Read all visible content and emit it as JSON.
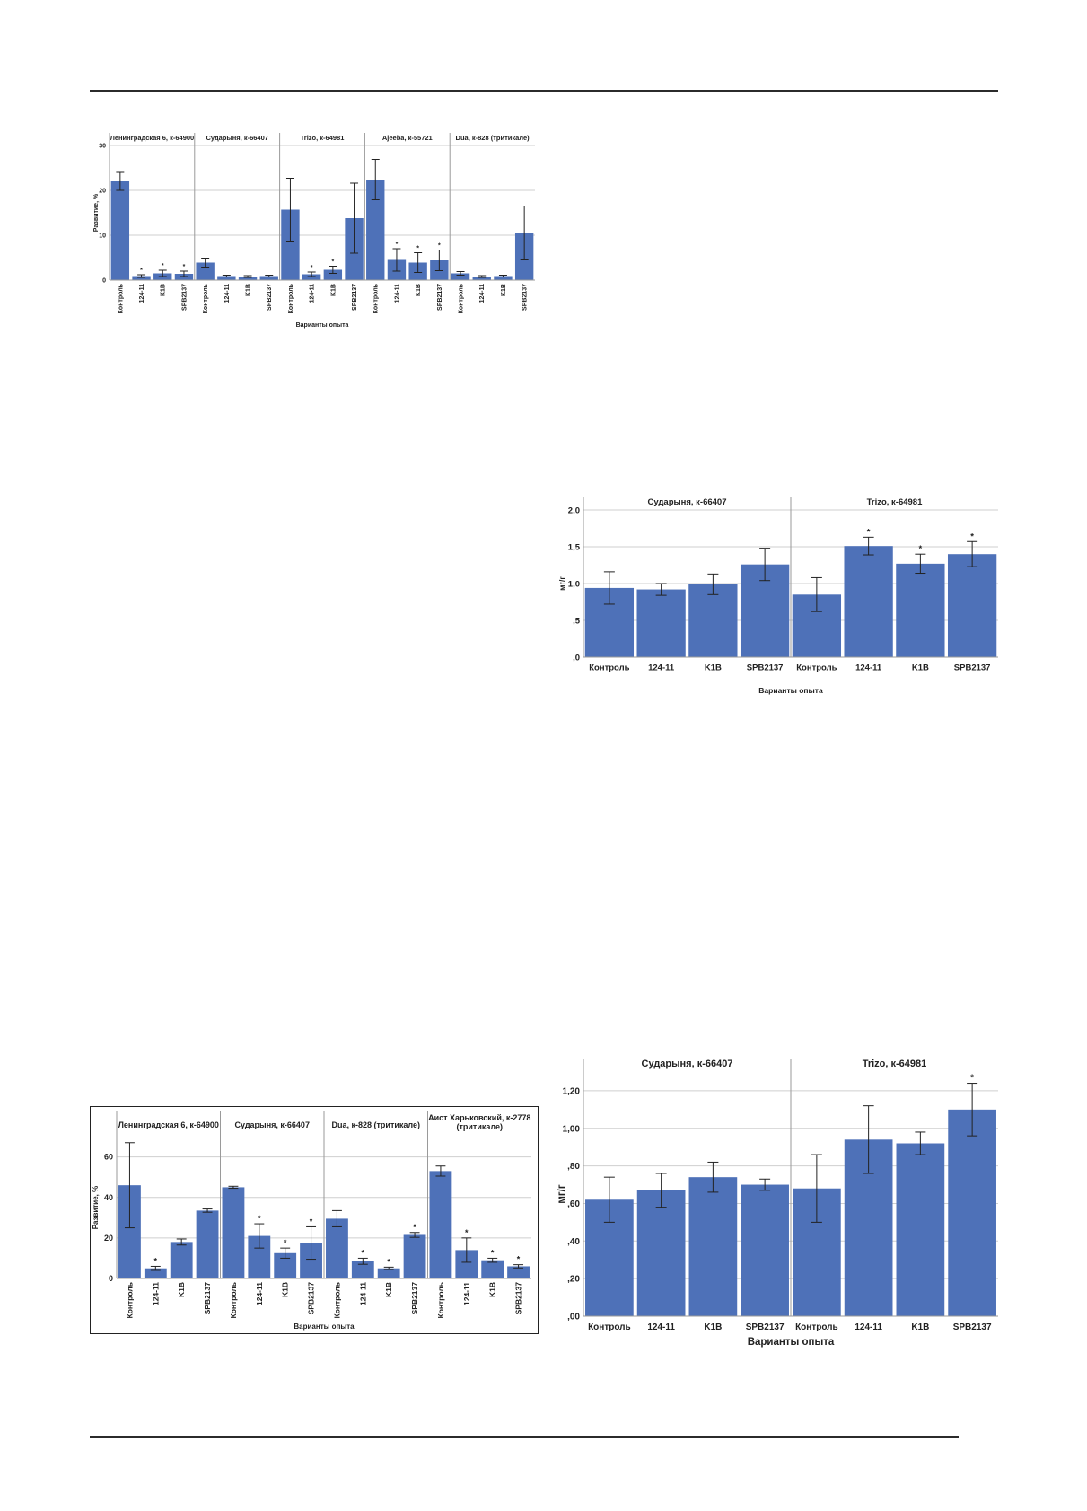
{
  "chart_data": [
    {
      "id": "chart-1",
      "type": "bar",
      "panels": [
        {
          "title": "Ленинградская 6, к-64900",
          "categories": [
            "Контроль",
            "124-11",
            "K1B",
            "SPB2137"
          ],
          "values": [
            22.0,
            0.9,
            1.5,
            1.4
          ],
          "err": [
            2.0,
            0.3,
            0.7,
            0.6
          ],
          "stars": [
            "",
            "*",
            "*",
            "*"
          ]
        },
        {
          "title": "Сударыня, к-66407",
          "categories": [
            "Контроль",
            "124-11",
            "K1B",
            "SPB2137"
          ],
          "values": [
            3.9,
            0.9,
            0.8,
            0.9
          ],
          "err": [
            1.0,
            0.2,
            0.2,
            0.2
          ],
          "stars": [
            "",
            "",
            "",
            ""
          ]
        },
        {
          "title": "Trizo, к-64981",
          "categories": [
            "Контроль",
            "124-11",
            "K1B",
            "SPB2137"
          ],
          "values": [
            15.7,
            1.3,
            2.3,
            13.8
          ],
          "err": [
            7.0,
            0.5,
            0.8,
            7.8
          ],
          "stars": [
            "",
            "*",
            "*",
            ""
          ]
        },
        {
          "title": "Ajeeba, к-55721",
          "categories": [
            "Контроль",
            "124-11",
            "K1B",
            "SPB2137"
          ],
          "values": [
            22.4,
            4.5,
            3.9,
            4.4
          ],
          "err": [
            4.5,
            2.5,
            2.2,
            2.3
          ],
          "stars": [
            "",
            "*",
            "*",
            "*"
          ]
        },
        {
          "title": "Dua, к-828 (тритикале)",
          "categories": [
            "Контроль",
            "124-11",
            "K1B",
            "SPB2137"
          ],
          "values": [
            1.5,
            0.8,
            0.9,
            10.5
          ],
          "err": [
            0.4,
            0.2,
            0.2,
            6.0
          ],
          "stars": [
            "",
            "",
            "",
            ""
          ]
        }
      ],
      "xlabel": "Варианты опыта",
      "ylabel": "Развитие, %",
      "ylim": [
        0,
        30
      ],
      "yticks": [
        "0",
        "10",
        "20",
        "30"
      ],
      "xlabels_rotated": true,
      "grid": true,
      "bar_color": "#4e71b8",
      "frame": false
    },
    {
      "id": "chart-2",
      "type": "bar",
      "panels": [
        {
          "title": "Сударыня, к-66407",
          "categories": [
            "Контроль",
            "124-11",
            "K1B",
            "SPB2137"
          ],
          "values": [
            0.94,
            0.92,
            0.99,
            1.26
          ],
          "err": [
            0.22,
            0.08,
            0.14,
            0.22
          ],
          "stars": [
            "",
            "",
            "",
            ""
          ]
        },
        {
          "title": "Trizo, к-64981",
          "categories": [
            "Контроль",
            "124-11",
            "K1B",
            "SPB2137"
          ],
          "values": [
            0.85,
            1.51,
            1.27,
            1.4
          ],
          "err": [
            0.23,
            0.12,
            0.13,
            0.17
          ],
          "stars": [
            "",
            "*",
            "*",
            "*"
          ]
        }
      ],
      "xlabel": "Варианты опыта",
      "ylabel": "мг/г",
      "ylim": [
        0,
        2.0
      ],
      "yticks": [
        ",0",
        ",5",
        "1,0",
        "1,5",
        "2,0"
      ],
      "xlabels_rotated": false,
      "grid": true,
      "bar_color": "#4e71b8",
      "frame": false
    },
    {
      "id": "chart-3",
      "type": "bar",
      "panels": [
        {
          "title": "Ленинградская 6, к-64900",
          "categories": [
            "Контроль",
            "124-11",
            "K1B",
            "SPB2137"
          ],
          "values": [
            46,
            5,
            18,
            33.5
          ],
          "err": [
            21,
            1,
            1.5,
            0.8
          ],
          "stars": [
            "",
            "*",
            "",
            ""
          ]
        },
        {
          "title": "Сударыня, к-66407",
          "categories": [
            "Контроль",
            "124-11",
            "K1B",
            "SPB2137"
          ],
          "values": [
            45,
            21,
            12.5,
            17.5
          ],
          "err": [
            0.5,
            6,
            2.5,
            8
          ],
          "stars": [
            "",
            "*",
            "*",
            "*"
          ]
        },
        {
          "title": "Dua, к-828 (тритикале)",
          "categories": [
            "Контроль",
            "124-11",
            "K1B",
            "SPB2137"
          ],
          "values": [
            29.5,
            8.5,
            5,
            21.5
          ],
          "err": [
            4,
            1.5,
            0.6,
            1.2
          ],
          "stars": [
            "",
            "*",
            "*",
            "*"
          ]
        },
        {
          "title": "Аист Харьковский, к-2778 (тритикале)",
          "categories": [
            "Контроль",
            "124-11",
            "K1B",
            "SPB2137"
          ],
          "values": [
            53,
            14,
            9,
            6
          ],
          "err": [
            2.5,
            6,
            1,
            0.8
          ],
          "stars": [
            "",
            "*",
            "*",
            "*"
          ]
        }
      ],
      "xlabel": "Варианты опыта",
      "ylabel": "Развитие, %",
      "ylim": [
        0,
        70
      ],
      "yticks": [
        "0",
        "20",
        "40",
        "60"
      ],
      "xlabels_rotated": true,
      "grid": true,
      "bar_color": "#4e71b8",
      "frame": true
    },
    {
      "id": "chart-4",
      "type": "bar",
      "panels": [
        {
          "title": "Сударыня, к-66407",
          "categories": [
            "Контроль",
            "124-11",
            "K1B",
            "SPB2137"
          ],
          "values": [
            0.62,
            0.67,
            0.74,
            0.7
          ],
          "err": [
            0.12,
            0.09,
            0.08,
            0.03
          ],
          "stars": [
            "",
            "",
            "",
            ""
          ]
        },
        {
          "title": "Trizo, к-64981",
          "categories": [
            "Контроль",
            "124-11",
            "K1B",
            "SPB2137"
          ],
          "values": [
            0.68,
            0.94,
            0.92,
            1.1
          ],
          "err": [
            0.18,
            0.18,
            0.06,
            0.14
          ],
          "stars": [
            "",
            "",
            "",
            "*"
          ]
        }
      ],
      "xlabel": "Варианты опыта",
      "ylabel": "мг/г",
      "ylim": [
        0,
        1.3
      ],
      "yticks": [
        ",00",
        ",20",
        ",40",
        ",60",
        ",80",
        "1,00",
        "1,20"
      ],
      "xlabels_rotated": false,
      "grid": true,
      "bar_color": "#4e71b8",
      "frame": false
    }
  ]
}
